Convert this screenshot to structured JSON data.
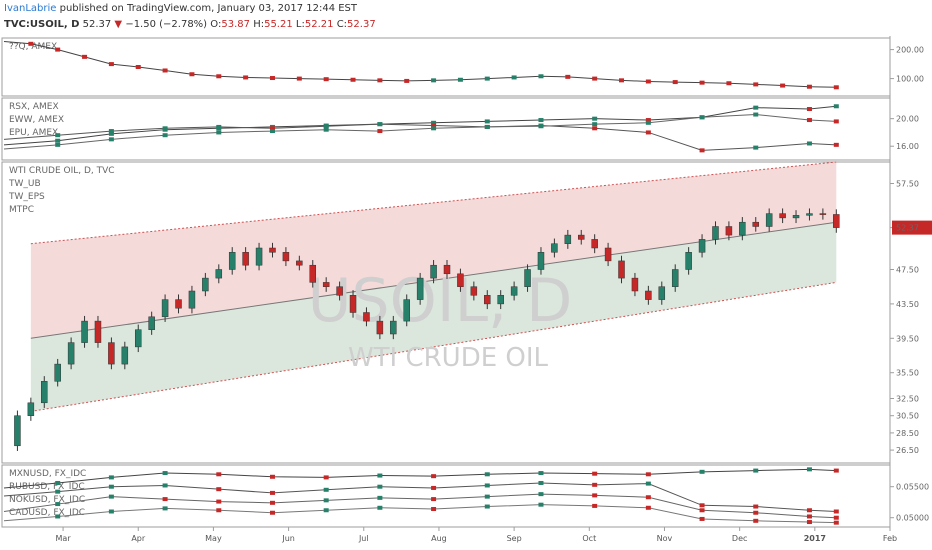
{
  "header": {
    "author": "IvanLabrie",
    "published": " published on TradingView.com, January 03, 2017 12:44 EST",
    "symbol": "TVC:USOIL, D",
    "last": "52.37",
    "change": "−1.50 (−2.78%)",
    "o_label": "O:",
    "o_val": "53.87",
    "h_label": "H:",
    "h_val": "55.21",
    "l_label": "L:",
    "l_val": "52.21",
    "c_label": "C:",
    "c_val": "52.37"
  },
  "colors": {
    "up": "#26806a",
    "down": "#c62828",
    "upper_channel_fill": "#f3d4d4",
    "lower_channel_fill": "#d5e3d7",
    "price_tag": "#c62828"
  },
  "chart_data": [
    {
      "type": "line",
      "panel": "top",
      "legend": [
        "??Q, AMEX"
      ],
      "yticks": [
        "200.00",
        "100.00"
      ],
      "ylim": [
        40,
        240
      ],
      "x": [
        0,
        10,
        20,
        30,
        40,
        50,
        60,
        70,
        80,
        90,
        100,
        110,
        120,
        130,
        140,
        150,
        160,
        170,
        180,
        190,
        200,
        210,
        220,
        230,
        240,
        250,
        260,
        270,
        280,
        290,
        300,
        310
      ],
      "series": [
        {
          "values": [
            228,
            220,
            200,
            175,
            150,
            140,
            128,
            115,
            108,
            104,
            102,
            100,
            98,
            96,
            94,
            92,
            94,
            96,
            100,
            104,
            108,
            106,
            100,
            94,
            90,
            88,
            86,
            84,
            80,
            76,
            72,
            70
          ]
        }
      ]
    },
    {
      "type": "line",
      "panel": "etf",
      "legend": [
        "RSX, AMEX",
        "EWW, AMEX",
        "EPU, AMEX"
      ],
      "yticks": [
        "20.00",
        "16.00"
      ],
      "ylim": [
        14,
        23
      ],
      "x": [
        0,
        20,
        40,
        60,
        80,
        100,
        120,
        140,
        160,
        180,
        200,
        220,
        240,
        260,
        280,
        300,
        310
      ],
      "series": [
        {
          "name": "RSX, AMEX",
          "values": [
            16.2,
            16.8,
            17.8,
            18.4,
            18.6,
            18.8,
            19.0,
            19.2,
            19.4,
            19.6,
            19.8,
            20.0,
            19.8,
            20.2,
            21.6,
            21.4,
            21.8
          ]
        },
        {
          "name": "EWW, AMEX",
          "values": [
            17.0,
            17.6,
            18.2,
            18.6,
            18.8,
            18.6,
            18.9,
            19.2,
            19.0,
            18.8,
            19.0,
            18.6,
            18.0,
            15.4,
            15.8,
            16.4,
            16.2
          ]
        },
        {
          "name": "EPU, AMEX",
          "values": [
            15.6,
            16.2,
            17.0,
            17.6,
            18.0,
            18.2,
            18.4,
            18.2,
            18.6,
            18.8,
            18.9,
            19.2,
            19.4,
            20.2,
            20.6,
            19.8,
            19.6
          ]
        }
      ]
    },
    {
      "type": "candlestick",
      "panel": "main",
      "legend": [
        "WTI CRUDE OIL, D, TVC",
        "TW_UB",
        "TW_EPS",
        "MTPC"
      ],
      "watermark_symbol": "USOIL, D",
      "watermark_name": "WTI CRUDE OIL",
      "yticks": [
        "57.50",
        "52.37",
        "47.50",
        "43.50",
        "39.50",
        "35.50",
        "32.50",
        "30.50",
        "28.50",
        "26.50"
      ],
      "ylim": [
        25,
        60
      ],
      "last_price": "52.37",
      "x": [
        0,
        5,
        10,
        15,
        20,
        25,
        30,
        35,
        40,
        45,
        50,
        55,
        60,
        65,
        70,
        75,
        80,
        85,
        90,
        95,
        100,
        105,
        110,
        115,
        120,
        125,
        130,
        135,
        140,
        145,
        150,
        155,
        160,
        165,
        170,
        175,
        180,
        185,
        190,
        195,
        200,
        205,
        210,
        215,
        220,
        225,
        230,
        235,
        240,
        245,
        250,
        255,
        260,
        265,
        270,
        275,
        280,
        285,
        290,
        295,
        300,
        305,
        310
      ],
      "close": [
        27.0,
        30.5,
        32.0,
        34.5,
        36.5,
        39.0,
        41.5,
        39.0,
        36.5,
        38.5,
        40.5,
        42.0,
        44.0,
        43.0,
        45.0,
        46.5,
        47.5,
        49.5,
        48.0,
        50.0,
        49.5,
        48.5,
        48.0,
        46.0,
        45.5,
        44.5,
        42.5,
        41.5,
        40.0,
        41.5,
        44.0,
        46.5,
        48.0,
        47.0,
        45.5,
        44.5,
        43.5,
        44.5,
        45.5,
        47.5,
        49.5,
        50.5,
        51.5,
        51.0,
        50.0,
        48.5,
        46.5,
        45.0,
        44.0,
        45.5,
        47.5,
        49.5,
        51.0,
        52.5,
        51.5,
        53.0,
        52.5,
        54.0,
        53.5,
        53.8,
        54.0,
        53.9,
        52.37
      ],
      "upper_band": {
        "x": [
          10,
          310
        ],
        "y": [
          50.5,
          60.0
        ]
      },
      "middle_band": {
        "x": [
          10,
          310
        ],
        "y": [
          39.5,
          53.0
        ]
      },
      "lower_band": {
        "x": [
          10,
          310
        ],
        "y": [
          31.0,
          46.0
        ]
      }
    },
    {
      "type": "line",
      "panel": "fx",
      "legend": [
        "MXNUSD, FX_IDC",
        "RUBUSD, FX_IDC",
        "NOKUSD, FX_IDC",
        "CADUSD, FX_IDC"
      ],
      "yticks": [
        "0.05500",
        "0.05000"
      ],
      "ylim": [
        0.0485,
        0.0585
      ],
      "x": [
        0,
        20,
        40,
        60,
        80,
        100,
        120,
        140,
        160,
        180,
        200,
        220,
        240,
        260,
        280,
        300,
        310
      ],
      "series": [
        {
          "name": "MXNUSD, FX_IDC",
          "values": [
            0.0548,
            0.0556,
            0.0565,
            0.0572,
            0.057,
            0.0566,
            0.0565,
            0.0568,
            0.0567,
            0.057,
            0.0572,
            0.0571,
            0.057,
            0.0574,
            0.0576,
            0.0578,
            0.0576
          ]
        },
        {
          "name": "RUBUSD, FX_IDC",
          "values": [
            0.0535,
            0.0542,
            0.055,
            0.0552,
            0.0546,
            0.054,
            0.0545,
            0.055,
            0.0548,
            0.0552,
            0.0556,
            0.0553,
            0.0555,
            0.052,
            0.0518,
            0.0512,
            0.051
          ]
        },
        {
          "name": "NOKUSD, FX_IDC",
          "values": [
            0.051,
            0.0522,
            0.0534,
            0.053,
            0.0526,
            0.0524,
            0.0528,
            0.0532,
            0.053,
            0.0534,
            0.0538,
            0.0536,
            0.0533,
            0.0512,
            0.0508,
            0.0502,
            0.05
          ]
        },
        {
          "name": "CADUSD, FX_IDC",
          "values": [
            0.0495,
            0.0502,
            0.051,
            0.0515,
            0.0512,
            0.0508,
            0.0512,
            0.0516,
            0.0514,
            0.0518,
            0.0521,
            0.0519,
            0.0516,
            0.0498,
            0.0495,
            0.0493,
            0.0492
          ]
        }
      ]
    }
  ],
  "xaxis": {
    "ticks": [
      {
        "label": "Mar",
        "x": 22
      },
      {
        "label": "Apr",
        "x": 50
      },
      {
        "label": "May",
        "x": 78
      },
      {
        "label": "Jun",
        "x": 106
      },
      {
        "label": "Jul",
        "x": 134
      },
      {
        "label": "Aug",
        "x": 162
      },
      {
        "label": "Sep",
        "x": 190
      },
      {
        "label": "Oct",
        "x": 218
      },
      {
        "label": "Nov",
        "x": 246
      },
      {
        "label": "Dec",
        "x": 274
      },
      {
        "label": "2017",
        "x": 302
      },
      {
        "label": "Feb",
        "x": 330
      }
    ]
  }
}
